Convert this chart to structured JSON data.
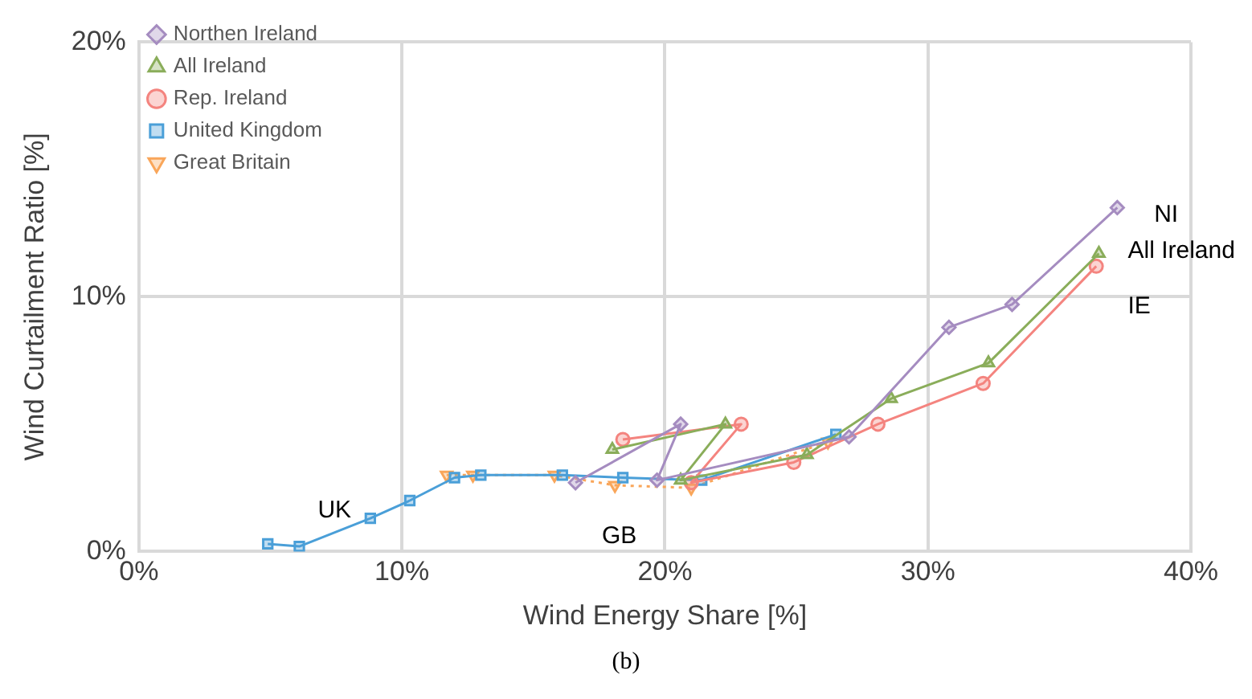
{
  "chart_data": {
    "type": "line",
    "xlabel": "Wind Energy Share [%]",
    "ylabel": "Wind Curtailment Ratio [%]",
    "xlim": [
      0,
      40
    ],
    "xticks": [
      {
        "value": 0,
        "label": "0%"
      },
      {
        "value": 10,
        "label": "10%"
      },
      {
        "value": 20,
        "label": "20%"
      },
      {
        "value": 30,
        "label": "30%"
      },
      {
        "value": 40,
        "label": "40%"
      }
    ],
    "ylim": [
      0,
      20
    ],
    "yticks": [
      {
        "value": 0,
        "label": "0%"
      },
      {
        "value": 10,
        "label": "10%"
      },
      {
        "value": 20,
        "label": "20%"
      }
    ],
    "grid": true,
    "legend": "top left",
    "series": [
      {
        "name": "Northen Ireland",
        "color": "#a58cc0",
        "marker": "diamond",
        "x": [
          16.6,
          20.6,
          19.7,
          27.0,
          30.8,
          33.2,
          37.2
        ],
        "values": [
          2.7,
          5.0,
          2.8,
          4.5,
          8.8,
          9.7,
          13.5
        ]
      },
      {
        "name": "All Ireland",
        "color": "#8aad5a",
        "marker": "triangle",
        "x": [
          18.0,
          22.3,
          20.6,
          25.4,
          28.6,
          32.3,
          36.5
        ],
        "values": [
          4.0,
          5.0,
          2.8,
          3.8,
          6.0,
          7.4,
          11.7
        ]
      },
      {
        "name": "Rep. Ireland",
        "color": "#f4847f",
        "marker": "circle",
        "x": [
          18.4,
          22.9,
          21.0,
          24.9,
          28.1,
          32.1,
          36.4
        ],
        "values": [
          4.4,
          5.0,
          2.7,
          3.5,
          5.0,
          6.6,
          11.2
        ]
      },
      {
        "name": "United Kingdom",
        "color": "#4a9fd8",
        "marker": "square",
        "x": [
          4.9,
          6.1,
          8.8,
          10.3,
          12.0,
          13.0,
          16.1,
          18.4,
          21.4,
          26.5
        ],
        "values": [
          0.3,
          0.2,
          1.3,
          2.0,
          2.9,
          3.0,
          3.0,
          2.9,
          2.8,
          4.6
        ]
      },
      {
        "name": "Great Britain",
        "color": "#f9a65a",
        "marker": "triangle-down",
        "line_style": "dotted",
        "x": [
          11.7,
          12.7,
          15.8,
          18.1,
          21.0,
          26.2
        ],
        "values": [
          3.0,
          3.0,
          3.0,
          2.6,
          2.5,
          4.3
        ]
      }
    ],
    "annotations": [
      "NI",
      "All Ireland",
      "IE",
      "UK",
      "GB",
      "(b)"
    ]
  }
}
